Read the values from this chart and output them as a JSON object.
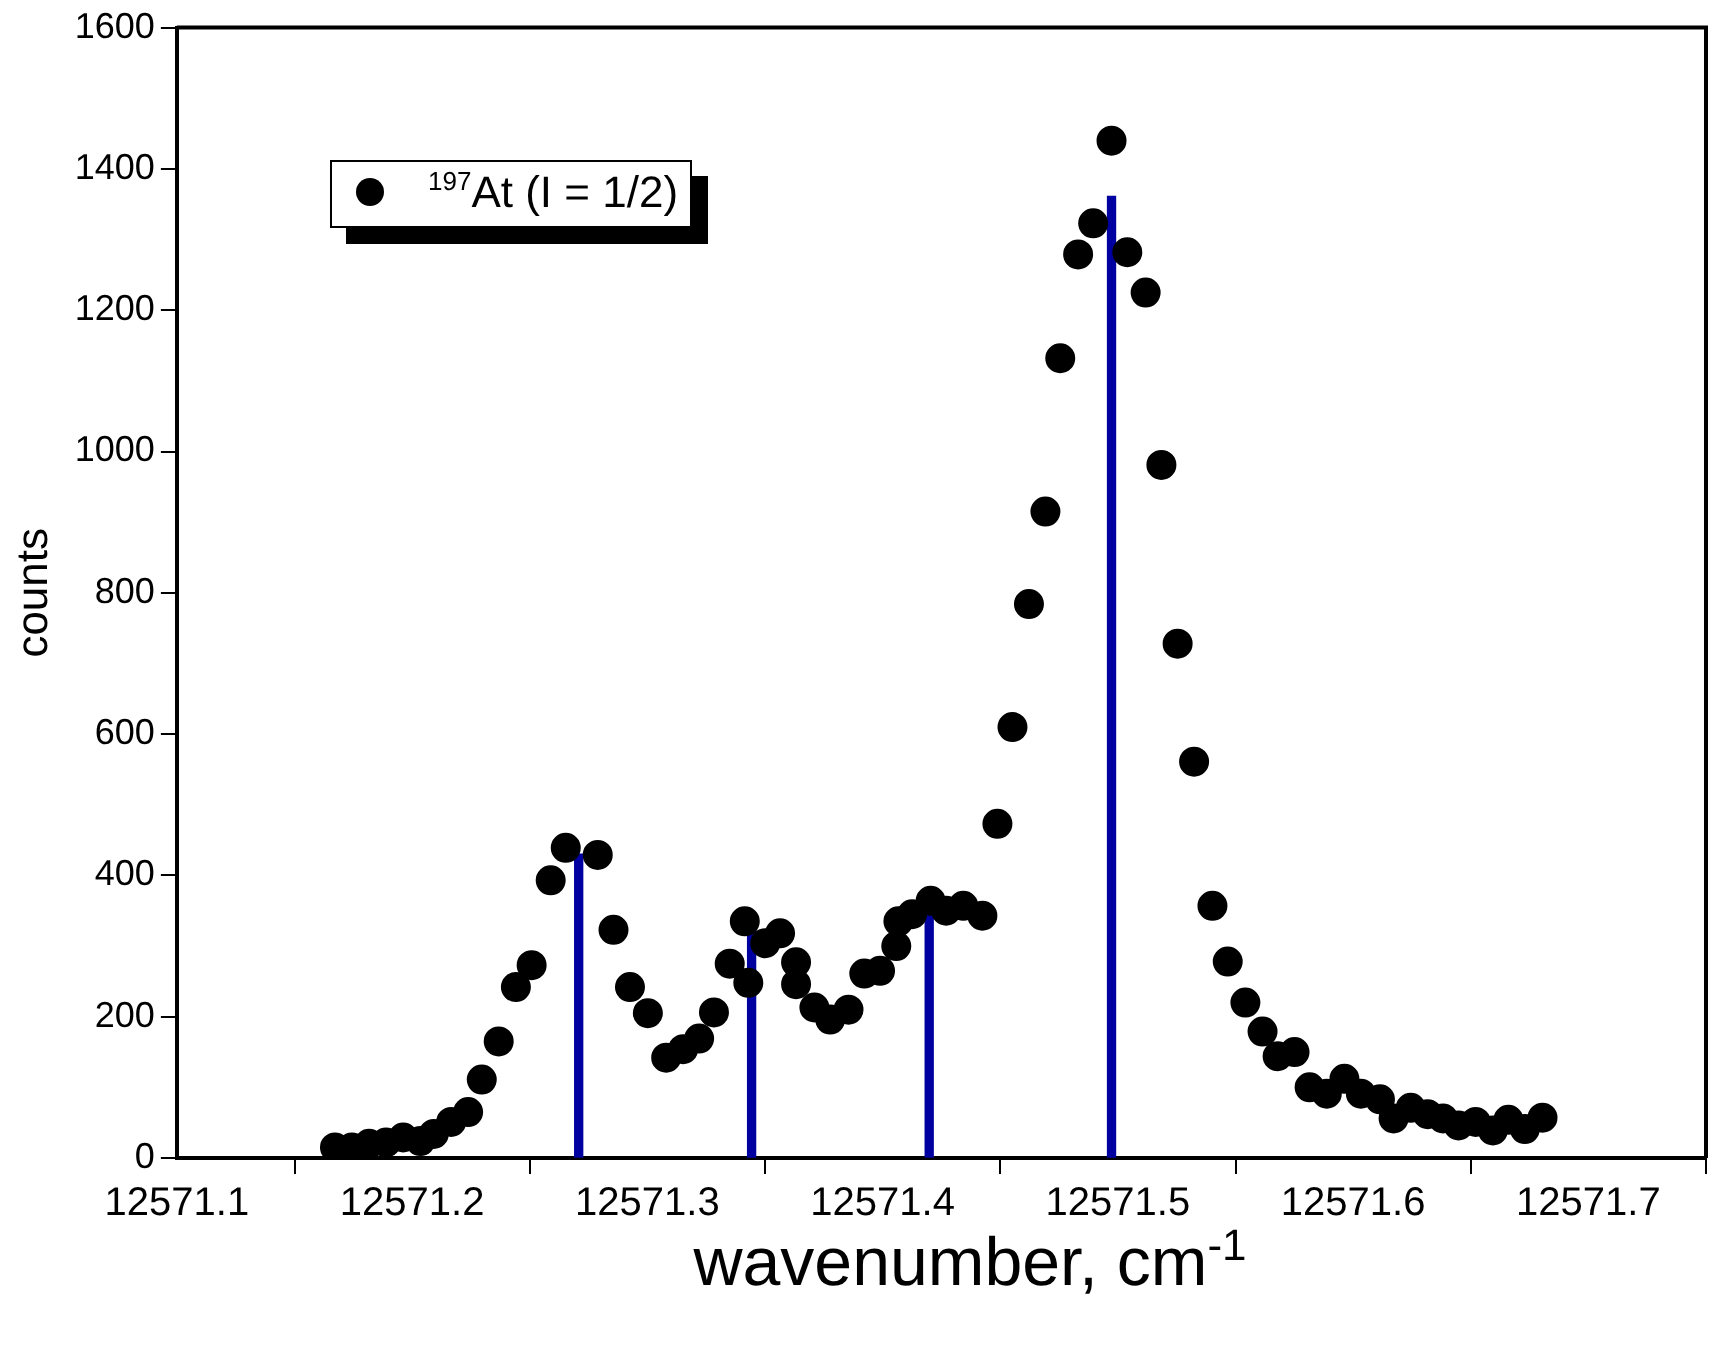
{
  "chart_data": {
    "type": "scatter",
    "xlabel": "wavenumber, cm$^{-1}$",
    "ylabel": "counts",
    "xlim": [
      12571.1,
      12571.75
    ],
    "xticks": [
      12571.1,
      12571.2,
      12571.3,
      12571.4,
      12571.5,
      12571.6,
      12571.7
    ],
    "ylim": [
      0,
      1600
    ],
    "yticks": [
      0,
      200,
      400,
      600,
      800,
      1000,
      1200,
      1400,
      1600
    ],
    "legend": "top left",
    "marker": "circle",
    "grid": false,
    "series": [
      {
        "name": "$^{197}$At (I = 1/2)",
        "color": "#000000",
        "x": [
          12571.1672,
          12571.1744,
          12571.1817,
          12571.1889,
          12571.1962,
          12571.2035,
          12571.2092,
          12571.2166,
          12571.2238,
          12571.2296,
          12571.2368,
          12571.2441,
          12571.2508,
          12571.2589,
          12571.2653,
          12571.2789,
          12571.2856,
          12571.2926,
          12571.3002,
          12571.308,
          12571.3152,
          12571.322,
          12571.3283,
          12571.335,
          12571.3414,
          12571.3429,
          12571.3501,
          12571.3564,
          12571.3632,
          12571.3632,
          12571.371,
          12571.3777,
          12571.3855,
          12571.3922,
          12571.3989,
          12571.4058,
          12571.4067,
          12571.4125,
          12571.4204,
          12571.427,
          12571.4343,
          12571.4424,
          12571.4488,
          12571.4552,
          12571.4622,
          12571.4692,
          12571.4755,
          12571.4831,
          12571.4895,
          12571.4973,
          12571.504,
          12571.5118,
          12571.5185,
          12571.5254,
          12571.5324,
          12571.5402,
          12571.5467,
          12571.5542,
          12571.5615,
          12571.5679,
          12571.5751,
          12571.5815,
          12571.5888,
          12571.5963,
          12571.6033,
          12571.6114,
          12571.6172,
          12571.6245,
          12571.6317,
          12571.6382,
          12571.6448,
          12571.6521,
          12571.6594,
          12571.666,
          12571.673,
          12571.6805
        ],
        "values": [
          15,
          15,
          20,
          22,
          29,
          24,
          34,
          51,
          65,
          111,
          165,
          242,
          273,
          393,
          439,
          429,
          323,
          242,
          205,
          142,
          154,
          169,
          206,
          275,
          335,
          248,
          304,
          318,
          277,
          246,
          213,
          196,
          210,
          261,
          265,
          300,
          335,
          345,
          364,
          350,
          357,
          343,
          473,
          610,
          784,
          915,
          1132,
          1279,
          1323,
          1440,
          1282,
          1225,
          981,
          728,
          561,
          357,
          278,
          220,
          179,
          144,
          150,
          100,
          91,
          112,
          91,
          83,
          56,
          71,
          62,
          56,
          46,
          51,
          39,
          54,
          41,
          57
        ]
      },
      {
        "type": "bar",
        "color": "#0000a0",
        "x": [
          12571.2708,
          12571.3443,
          12571.4198,
          12571.4973
        ],
        "values": [
          430,
          347,
          350,
          1361
        ]
      }
    ]
  }
}
